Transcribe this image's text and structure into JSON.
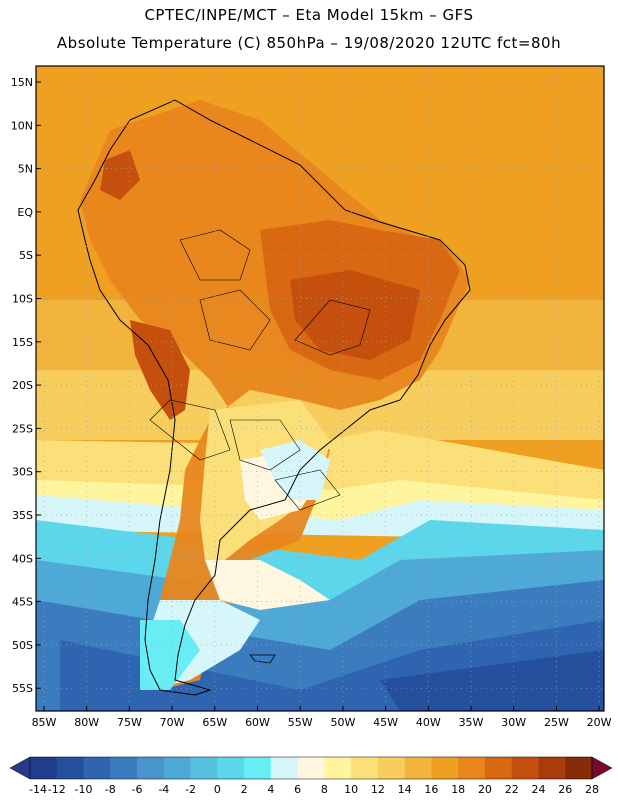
{
  "header": {
    "line1": "CPTEC/INPE/MCT –  Eta Model 15km – GFS",
    "line2": "Absolute Temperature (C) 850hPa – 19/08/2020 12UTC fct=80h"
  },
  "map": {
    "lat_labels": [
      "15N",
      "10N",
      "5N",
      "EQ",
      "5S",
      "10S",
      "15S",
      "20S",
      "25S",
      "30S",
      "35S",
      "40S",
      "45S",
      "50S",
      "55S"
    ],
    "lon_labels": [
      "85W",
      "80W",
      "75W",
      "70W",
      "65W",
      "60W",
      "55W",
      "50W",
      "45W",
      "40W",
      "35W",
      "30W",
      "25W",
      "20W"
    ]
  },
  "colorbar": {
    "labels": [
      "-14",
      "-12",
      "-10",
      "-8",
      "-6",
      "-4",
      "-2",
      "0",
      "2",
      "4",
      "6",
      "8",
      "10",
      "12",
      "14",
      "16",
      "18",
      "20",
      "22",
      "24",
      "26",
      "28"
    ],
    "colors": [
      "#1f3d8c",
      "#24509e",
      "#2f64b0",
      "#3b7cbf",
      "#4a94cc",
      "#4fa9d6",
      "#56c0e0",
      "#5cd6ea",
      "#66eef4",
      "#d6f6fa",
      "#fff7e0",
      "#fff59e",
      "#fbe07a",
      "#f7cd5e",
      "#f2b43c",
      "#f0a020",
      "#e8861c",
      "#d96812",
      "#c5500e",
      "#a83c0c",
      "#872a08"
    ],
    "low_color": "#2a3a8a",
    "high_color": "#7a0a2a"
  }
}
